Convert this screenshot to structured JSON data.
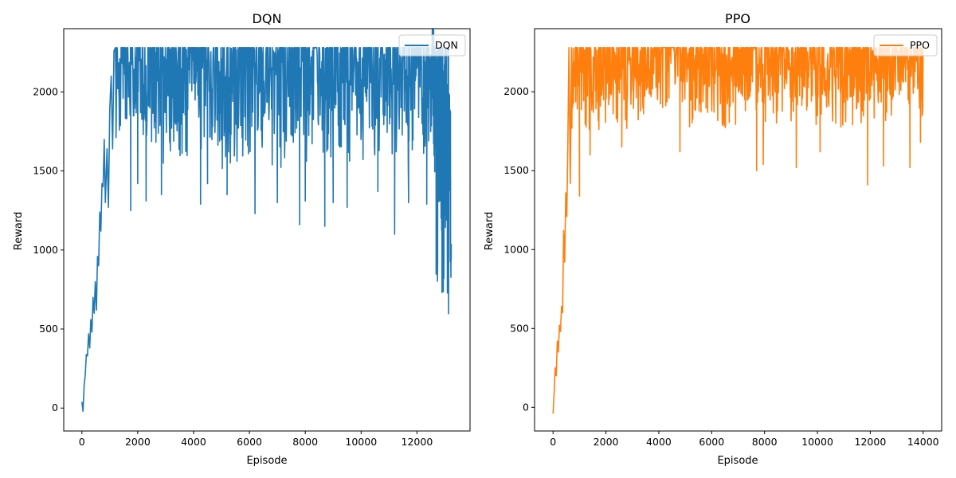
{
  "chart_data": [
    {
      "type": "line",
      "title": "DQN",
      "xlabel": "Episode",
      "ylabel": "Reward",
      "xlim": [
        -650,
        13900
      ],
      "ylim": [
        -145,
        2400
      ],
      "xticks": [
        0,
        2000,
        4000,
        6000,
        8000,
        10000,
        12000
      ],
      "yticks": [
        0,
        500,
        1000,
        1500,
        2000
      ],
      "grid": false,
      "legend": "top-right",
      "series": [
        {
          "name": "DQN",
          "color": "#1f77b4",
          "x_range": [
            0,
            13200
          ],
          "points": [
            [
              0,
              40
            ],
            [
              40,
              -20
            ],
            [
              80,
              140
            ],
            [
              120,
              210
            ],
            [
              160,
              340
            ],
            [
              200,
              330
            ],
            [
              240,
              470
            ],
            [
              280,
              380
            ],
            [
              320,
              560
            ],
            [
              360,
              480
            ],
            [
              400,
              700
            ],
            [
              440,
              600
            ],
            [
              480,
              800
            ],
            [
              520,
              620
            ],
            [
              560,
              960
            ],
            [
              600,
              900
            ],
            [
              640,
              1240
            ],
            [
              680,
              1120
            ],
            [
              720,
              1420
            ],
            [
              760,
              1400
            ],
            [
              800,
              1700
            ],
            [
              840,
              1300
            ],
            [
              900,
              1640
            ],
            [
              950,
              1270
            ],
            [
              1000,
              1900
            ],
            [
              1050,
              2100
            ],
            [
              1100,
              1640
            ],
            [
              1150,
              2260
            ],
            [
              1200,
              2280
            ],
            [
              1500,
              2280
            ],
            [
              2500,
              2280
            ],
            [
              4000,
              2280
            ],
            [
              6000,
              2280
            ],
            [
              8000,
              2280
            ],
            [
              10000,
              2280
            ],
            [
              11000,
              2280
            ],
            [
              12000,
              2280
            ],
            [
              12300,
              2280
            ],
            [
              12560,
              2280
            ],
            [
              12600,
              1620
            ],
            [
              12700,
              1000
            ],
            [
              12800,
              1400
            ],
            [
              12900,
              940
            ],
            [
              13000,
              1320
            ],
            [
              13100,
              800
            ],
            [
              13150,
              1560
            ],
            [
              13200,
              980
            ]
          ],
          "band": [
            [
              1200,
              1600,
              2280
            ],
            [
              4000,
              1500,
              2280
            ],
            [
              8000,
              1500,
              2280
            ],
            [
              12000,
              1500,
              2280
            ],
            [
              12550,
              1550,
              2280
            ]
          ],
          "dips": [
            [
              1750,
              1250
            ],
            [
              2000,
              1420
            ],
            [
              2300,
              1310
            ],
            [
              2850,
              1350
            ],
            [
              4250,
              1290
            ],
            [
              4500,
              1420
            ],
            [
              5200,
              1350
            ],
            [
              6200,
              1230
            ],
            [
              7000,
              1300
            ],
            [
              7800,
              1160
            ],
            [
              8000,
              1310
            ],
            [
              8700,
              1150
            ],
            [
              9000,
              1300
            ],
            [
              9500,
              1270
            ],
            [
              10600,
              1370
            ],
            [
              11200,
              1100
            ],
            [
              11700,
              1300
            ],
            [
              12350,
              1290
            ]
          ]
        }
      ]
    },
    {
      "type": "line",
      "title": "PPO",
      "xlabel": "Episode",
      "ylabel": "Reward",
      "xlim": [
        -700,
        14700
      ],
      "ylim": [
        -150,
        2400
      ],
      "xticks": [
        0,
        2000,
        4000,
        6000,
        8000,
        10000,
        12000,
        14000
      ],
      "yticks": [
        0,
        500,
        1000,
        1500,
        2000
      ],
      "grid": false,
      "legend": "top-right",
      "series": [
        {
          "name": "PPO",
          "color": "#ff7f0e",
          "x_range": [
            0,
            14000
          ],
          "points": [
            [
              0,
              -40
            ],
            [
              40,
              90
            ],
            [
              80,
              250
            ],
            [
              120,
              200
            ],
            [
              160,
              420
            ],
            [
              200,
              350
            ],
            [
              240,
              520
            ],
            [
              280,
              480
            ],
            [
              320,
              640
            ],
            [
              360,
              600
            ],
            [
              400,
              1120
            ],
            [
              440,
              920
            ],
            [
              480,
              1360
            ],
            [
              520,
              1210
            ],
            [
              560,
              1680
            ],
            [
              600,
              2280
            ],
            [
              650,
              1420
            ],
            [
              700,
              2280
            ],
            [
              800,
              1800
            ],
            [
              1000,
              1340
            ],
            [
              1100,
              2280
            ],
            [
              2000,
              2280
            ],
            [
              4000,
              2280
            ],
            [
              6000,
              2280
            ],
            [
              8000,
              2280
            ],
            [
              10000,
              2280
            ],
            [
              12000,
              2280
            ],
            [
              14000,
              2280
            ]
          ],
          "band": [
            [
              700,
              1700,
              2280
            ],
            [
              4000,
              1750,
              2280
            ],
            [
              8000,
              1750,
              2280
            ],
            [
              12000,
              1760,
              2280
            ],
            [
              14000,
              1800,
              2280
            ]
          ],
          "dips": [
            [
              1000,
              1340
            ],
            [
              1400,
              1600
            ],
            [
              2600,
              1650
            ],
            [
              4800,
              1620
            ],
            [
              7700,
              1500
            ],
            [
              7950,
              1540
            ],
            [
              9200,
              1520
            ],
            [
              10100,
              1620
            ],
            [
              11900,
              1410
            ],
            [
              12500,
              1530
            ],
            [
              13500,
              1520
            ],
            [
              13900,
              1680
            ]
          ]
        }
      ]
    }
  ]
}
